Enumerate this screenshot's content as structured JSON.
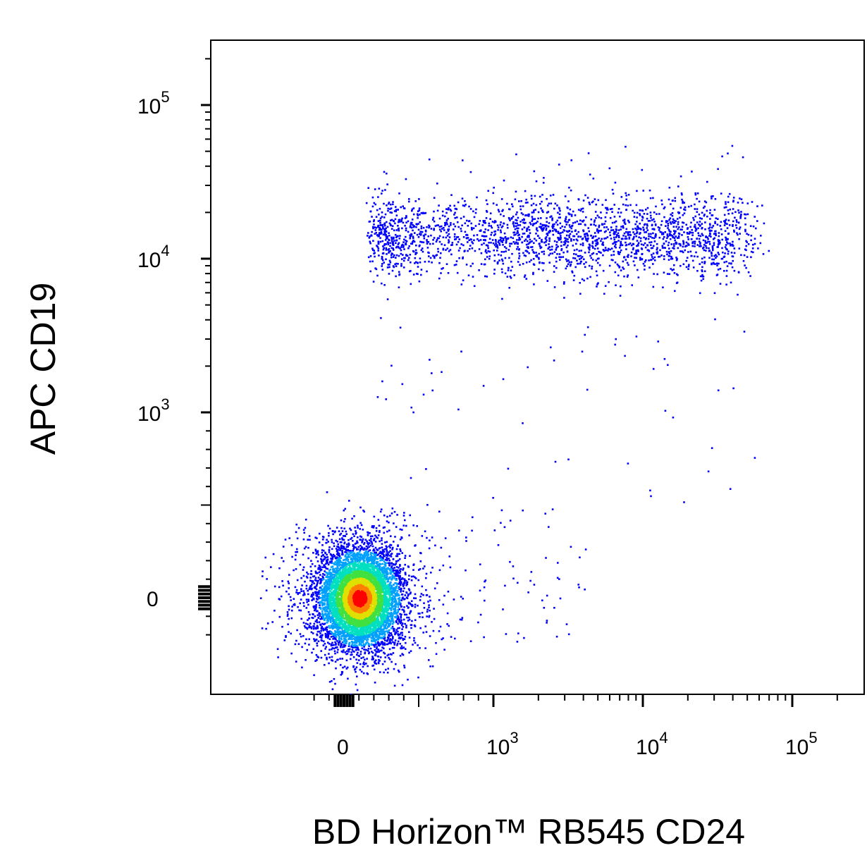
{
  "chart_data": {
    "type": "scatter",
    "subtype": "flow-cytometry-density-dot-plot",
    "title": "",
    "xlabel": "BD Horizon™ RB545 CD24",
    "ylabel": "APC CD19",
    "x_scale": "biexponential (linear near 0, log above ~10^3)",
    "y_scale": "biexponential (linear near 0, log above ~10^3)",
    "x_ticks": [
      {
        "value": 0,
        "label": "0"
      },
      {
        "value": 1000,
        "label": "10",
        "exp": "3"
      },
      {
        "value": 10000,
        "label": "10",
        "exp": "4"
      },
      {
        "value": 100000,
        "label": "10",
        "exp": "5"
      }
    ],
    "y_ticks": [
      {
        "value": 0,
        "label": "0"
      },
      {
        "value": 1000,
        "label": "10",
        "exp": "3"
      },
      {
        "value": 10000,
        "label": "10",
        "exp": "4"
      },
      {
        "value": 100000,
        "label": "10",
        "exp": "5"
      }
    ],
    "xlim": [
      -250,
      250000
    ],
    "ylim": [
      -250,
      250000
    ],
    "color_scale": [
      "#0000ff",
      "#00a0ff",
      "#00e0c0",
      "#40e040",
      "#e0e000",
      "#ff8000",
      "#ff0000"
    ],
    "populations": [
      {
        "name": "",
        "center_x": 100,
        "center_y": 0,
        "spread": "dense, peak density red",
        "approx_fraction": 0.9
      },
      {
        "name": "",
        "center_x": 3000,
        "center_y": 14000,
        "spread": "x from ~200 to ~50000, y ~6000-30000",
        "approx_fraction": 0.09
      }
    ],
    "grid": false,
    "legend": "none"
  }
}
